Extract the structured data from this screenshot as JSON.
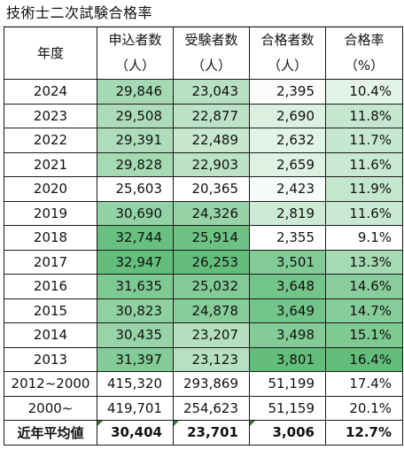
{
  "title": "技術士二次試験合格率",
  "headers": {
    "year": "年度",
    "applicants": [
      "申込者数",
      "（人）"
    ],
    "examinees": [
      "受験者数",
      "（人）"
    ],
    "passers": [
      "合格者数",
      "（人）"
    ],
    "rate": [
      "合格率",
      "（%）"
    ]
  },
  "rows": [
    {
      "year": "2024",
      "applicants": "29,846",
      "examinees": "23,043",
      "passers": "2,395",
      "rate": "10.4%"
    },
    {
      "year": "2023",
      "applicants": "29,508",
      "examinees": "22,877",
      "passers": "2,690",
      "rate": "11.8%"
    },
    {
      "year": "2022",
      "applicants": "29,391",
      "examinees": "22,489",
      "passers": "2,632",
      "rate": "11.7%"
    },
    {
      "year": "2021",
      "applicants": "29,828",
      "examinees": "22,903",
      "passers": "2,659",
      "rate": "11.6%"
    },
    {
      "year": "2020",
      "applicants": "25,603",
      "examinees": "20,365",
      "passers": "2,423",
      "rate": "11.9%"
    },
    {
      "year": "2019",
      "applicants": "30,690",
      "examinees": "24,326",
      "passers": "2,819",
      "rate": "11.6%"
    },
    {
      "year": "2018",
      "applicants": "32,744",
      "examinees": "25,914",
      "passers": "2,355",
      "rate": "9.1%"
    },
    {
      "year": "2017",
      "applicants": "32,947",
      "examinees": "26,253",
      "passers": "3,501",
      "rate": "13.3%"
    },
    {
      "year": "2016",
      "applicants": "31,635",
      "examinees": "25,032",
      "passers": "3,648",
      "rate": "14.6%"
    },
    {
      "year": "2015",
      "applicants": "30,823",
      "examinees": "24,878",
      "passers": "3,649",
      "rate": "14.7%"
    },
    {
      "year": "2014",
      "applicants": "30,435",
      "examinees": "23,207",
      "passers": "3,498",
      "rate": "15.1%"
    },
    {
      "year": "2013",
      "applicants": "31,397",
      "examinees": "23,123",
      "passers": "3,801",
      "rate": "16.4%"
    },
    {
      "year": "2012~2000",
      "applicants": "415,320",
      "examinees": "293,869",
      "passers": "51,199",
      "rate": "17.4%"
    },
    {
      "year": "2000~",
      "applicants": "419,701",
      "examinees": "254,623",
      "passers": "51,159",
      "rate": "20.1%"
    }
  ],
  "average": {
    "year": "近年平均値",
    "applicants": "30,404",
    "examinees": "23,701",
    "passers": "3,006",
    "rate": "12.7%"
  },
  "colors": {
    "scale_low": "#ffffff",
    "scale_high": "#63be7b",
    "border": "#1a1a1a",
    "gridline": "#d4d4d4",
    "error_marker": "#2e7d32"
  }
}
